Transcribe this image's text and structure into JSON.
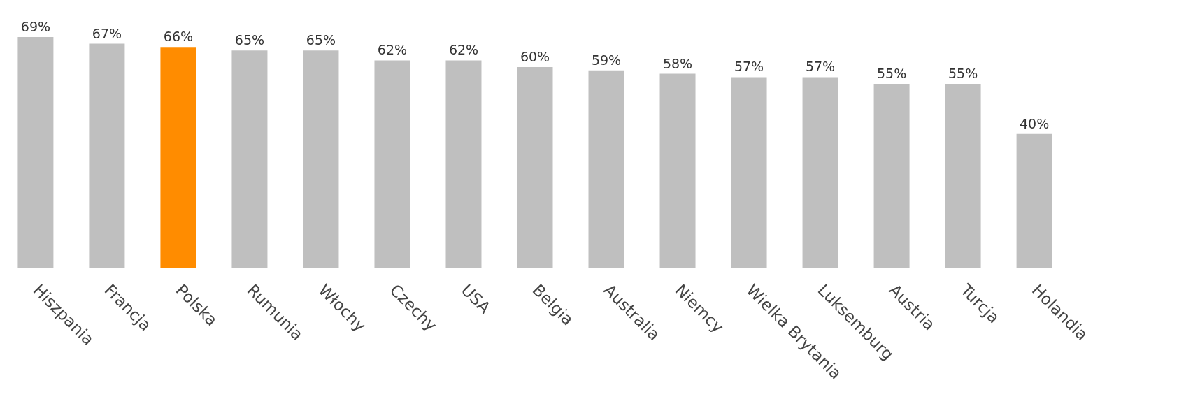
{
  "chart_data": {
    "type": "bar",
    "categories": [
      "Hiszpania",
      "Francja",
      "Polska",
      "Rumunia",
      "Włochy",
      "Czechy",
      "USA",
      "Belgia",
      "Australia",
      "Niemcy",
      "Wielka Brytania",
      "Luksemburg",
      "Austria",
      "Turcja",
      "Holandia"
    ],
    "values": [
      69,
      67,
      66,
      65,
      65,
      62,
      62,
      60,
      59,
      58,
      57,
      57,
      55,
      55,
      40
    ],
    "colors": [
      "#bfbfbf",
      "#bfbfbf",
      "#ff8c00",
      "#bfbfbf",
      "#bfbfbf",
      "#bfbfbf",
      "#bfbfbf",
      "#bfbfbf",
      "#bfbfbf",
      "#bfbfbf",
      "#bfbfbf",
      "#bfbfbf",
      "#bfbfbf",
      "#bfbfbf",
      "#bfbfbf"
    ],
    "value_labels": [
      "69%",
      "67%",
      "66%",
      "65%",
      "65%",
      "62%",
      "62%",
      "60%",
      "59%",
      "58%",
      "57%",
      "57%",
      "55%",
      "55%",
      "40%"
    ],
    "tick_labels": "x"
  }
}
